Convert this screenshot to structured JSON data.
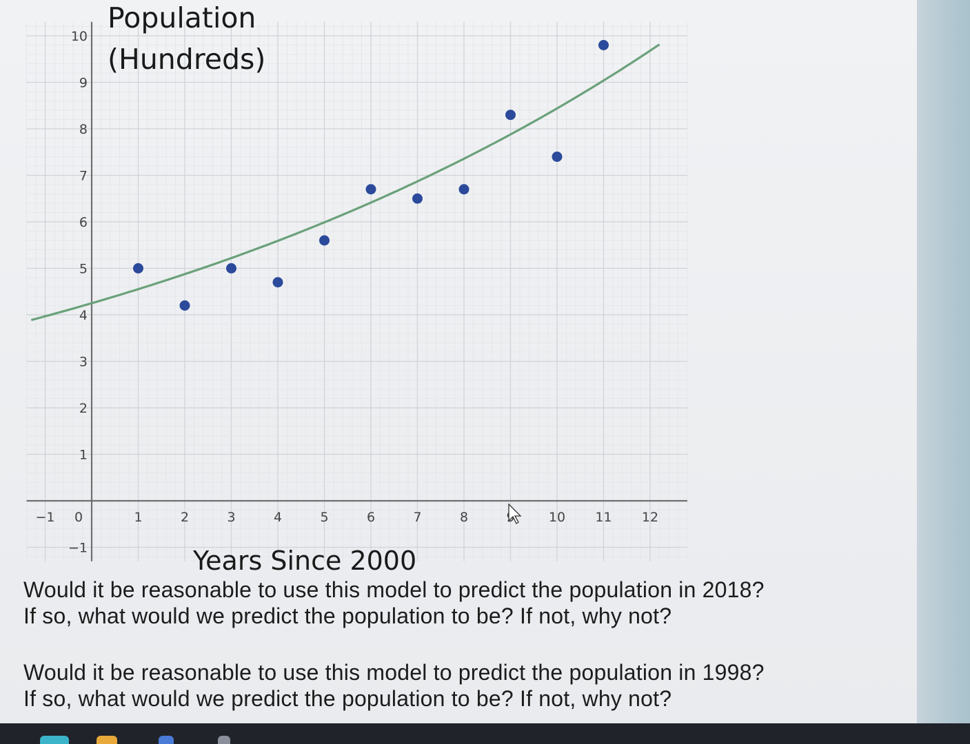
{
  "chart_data": {
    "type": "scatter",
    "title": "",
    "ylabel_line1": "Population",
    "ylabel_line2": "(Hundreds)",
    "xlabel": "Years Since 2000",
    "xlim": [
      -1.4,
      12.8
    ],
    "ylim": [
      -1.3,
      10.3
    ],
    "x_ticks": [
      -1,
      0,
      1,
      2,
      3,
      4,
      5,
      6,
      7,
      8,
      9,
      10,
      11,
      12
    ],
    "y_ticks": [
      -1,
      1,
      2,
      3,
      4,
      5,
      6,
      7,
      8,
      9,
      10
    ],
    "grid": true,
    "series": [
      {
        "kind": "points",
        "x": [
          1,
          2,
          3,
          4,
          5,
          6,
          7,
          8,
          9,
          10,
          11
        ],
        "y": [
          5.0,
          4.2,
          5.0,
          4.7,
          5.6,
          6.7,
          6.5,
          6.7,
          8.3,
          7.4,
          9.8
        ]
      },
      {
        "kind": "trend-curve",
        "model": "exponential",
        "a": 4.25,
        "b": 1.071,
        "x_range": [
          -1.3,
          12.2
        ]
      }
    ],
    "colors": {
      "points": "#2b4a9b",
      "curve": "#6aa17a",
      "axis": "#6f6f6f",
      "grid_major": "#cfd3d8",
      "grid_minor": "#e2e5e8"
    }
  },
  "questions": [
    {
      "line1": "Would it be reasonable to use this model to predict the population in 2018?",
      "line2": "If so, what would we predict the population to be? If not, why not?"
    },
    {
      "line1": "Would it be reasonable to use this model to predict the population in 1998?",
      "line2": "If so, what would we predict the population to be? If not, why not?"
    }
  ]
}
